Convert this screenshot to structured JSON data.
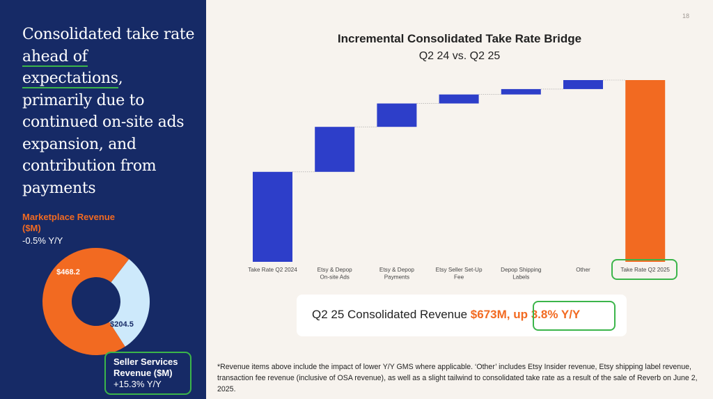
{
  "page_number": "18",
  "headline": {
    "part1": "Consolidated take rate ",
    "highlight1": "ahead of",
    "highlight2": "expectations",
    "part2": ", primarily due to continued on-site ads expansion, and contribution from payments"
  },
  "marketplace": {
    "title": "Marketplace Revenue ($M)",
    "growth": "-0.5% Y/Y",
    "value_label": "$468.2",
    "value": 468.2,
    "color": "#f26a21"
  },
  "seller_services": {
    "title": "Seller Services Revenue ($M)",
    "growth": "+15.3% Y/Y",
    "value_label": "$204.5",
    "value": 204.5,
    "color": "#cde9fb"
  },
  "chart_data": {
    "type": "waterfall",
    "title": "Incremental Consolidated Take Rate Bridge",
    "subtitle": "Q2 24 vs. Q2 25",
    "categories": [
      "Take Rate Q2 2024",
      "Etsy & Depop On-site Ads",
      "Etsy & Depop Payments",
      "Etsy Seller Set-Up Fee",
      "Depop Shipping Labels",
      "Other",
      "Take Rate Q2 2025"
    ],
    "kinds": [
      "total",
      "delta",
      "delta",
      "delta",
      "delta",
      "delta",
      "total"
    ],
    "values": [
      50,
      25,
      13,
      5,
      3,
      5,
      101
    ],
    "ylim": [
      0,
      101
    ],
    "colors": {
      "total_start": "#2d3ec9",
      "delta": "#2d3ec9",
      "total_end": "#f26a21"
    }
  },
  "revenue_callout": {
    "prefix": "Q2 25 Consolidated Revenue ",
    "amount": "$673M",
    "comma": ",",
    "growth": " up 3.8% Y/Y"
  },
  "footnote": "*Revenue items above include the impact of lower Y/Y GMS where applicable. ‘Other’ includes Etsy Insider revenue, Etsy shipping label revenue, transaction fee revenue (inclusive of OSA revenue), as well as a slight tailwind to consolidated take rate as a result of the sale of Reverb on June 2, 2025."
}
